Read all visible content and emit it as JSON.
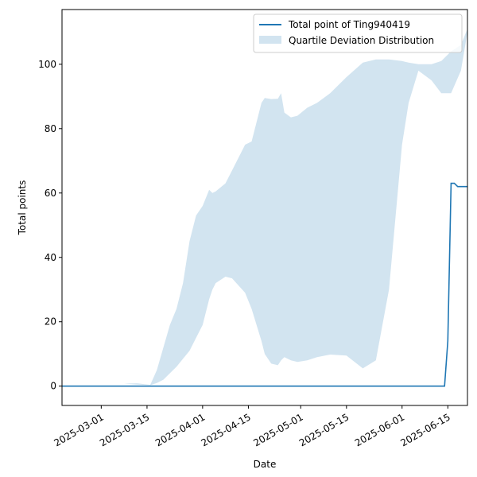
{
  "chart_data": {
    "type": "line",
    "xlabel": "Date",
    "ylabel": "Total points",
    "xlim": [
      "2025-02-17",
      "2025-06-21"
    ],
    "ylim": [
      -6,
      117
    ],
    "x_ticks": [
      "2025-03-01",
      "2025-03-15",
      "2025-04-01",
      "2025-04-15",
      "2025-05-01",
      "2025-05-15",
      "2025-06-01",
      "2025-06-15"
    ],
    "y_ticks": [
      0,
      20,
      40,
      60,
      80,
      100
    ],
    "grid": false,
    "legend_position": "top-right",
    "colors": {
      "line": "#1f77b4",
      "band": "#1f77b4",
      "band_opacity": 0.2
    },
    "series": [
      {
        "name": "Total point of Ting940419",
        "type": "line",
        "x": [
          "2025-02-17",
          "2025-06-14",
          "2025-06-15",
          "2025-06-16",
          "2025-06-17",
          "2025-06-18",
          "2025-06-19",
          "2025-06-21"
        ],
        "values": [
          0,
          0,
          14,
          63,
          63,
          62,
          62,
          62
        ]
      },
      {
        "name": "Quartile Deviation Distribution",
        "type": "band",
        "x": [
          "2025-03-08",
          "2025-03-12",
          "2025-03-16",
          "2025-03-18",
          "2025-03-20",
          "2025-03-22",
          "2025-03-24",
          "2025-03-26",
          "2025-03-28",
          "2025-03-30",
          "2025-04-01",
          "2025-04-03",
          "2025-04-04",
          "2025-04-05",
          "2025-04-08",
          "2025-04-10",
          "2025-04-14",
          "2025-04-16",
          "2025-04-19",
          "2025-04-20",
          "2025-04-22",
          "2025-04-24",
          "2025-04-25",
          "2025-04-26",
          "2025-04-28",
          "2025-04-30",
          "2025-05-03",
          "2025-05-06",
          "2025-05-10",
          "2025-05-15",
          "2025-05-20",
          "2025-05-24",
          "2025-05-28",
          "2025-06-01",
          "2025-06-03",
          "2025-06-06",
          "2025-06-10",
          "2025-06-13",
          "2025-06-16",
          "2025-06-19",
          "2025-06-21"
        ],
        "lower": [
          0.8,
          0.5,
          0.3,
          1,
          2,
          4,
          6,
          8.5,
          11,
          15,
          19,
          27,
          30,
          32,
          34,
          33.5,
          29,
          24,
          14,
          10,
          7,
          6.5,
          8,
          9,
          8,
          7.5,
          8,
          9,
          9.8,
          9.5,
          5.5,
          8,
          30,
          75,
          88,
          98,
          95,
          91,
          91,
          98,
          110
        ],
        "upper": [
          0.8,
          0.9,
          0.4,
          5,
          12,
          19,
          24,
          32,
          45,
          53,
          56,
          61,
          60,
          60.5,
          63,
          67,
          75,
          76,
          88,
          89.5,
          89.2,
          89.3,
          91,
          85,
          83.5,
          84,
          86.5,
          88,
          91,
          96,
          100.5,
          101.5,
          101.5,
          101,
          100.5,
          100,
          100,
          101,
          104,
          106,
          111
        ]
      }
    ]
  }
}
